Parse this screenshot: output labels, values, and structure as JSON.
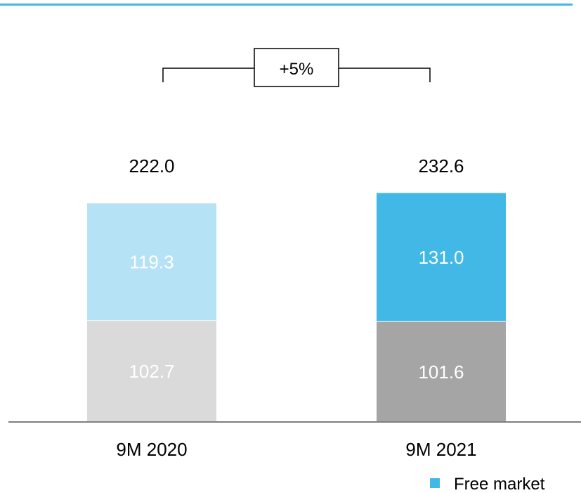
{
  "chart_data": {
    "type": "bar",
    "stacked": true,
    "categories": [
      "9M 2020",
      "9M 2021"
    ],
    "totals": [
      "222.0",
      "232.6"
    ],
    "series": [
      {
        "values": [
          102.7,
          101.6
        ],
        "labels": [
          "102.7",
          "101.6"
        ]
      },
      {
        "name": "Free market",
        "values": [
          119.3,
          131.0
        ],
        "labels": [
          "119.3",
          "131.0"
        ]
      }
    ],
    "colors": {
      "bottom": [
        "#dadada",
        "#a5a5a5"
      ],
      "top": [
        "#b5e2f5",
        "#41b8e5"
      ],
      "accent": "#41b8e5",
      "axis": "#7f7f7f"
    },
    "annotation": {
      "text": "+5%"
    },
    "legend": {
      "placement": "bottom-right"
    }
  }
}
